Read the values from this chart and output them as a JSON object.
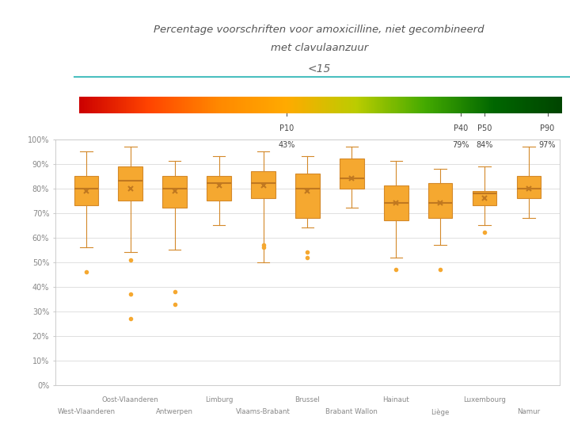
{
  "title_line1": "Percentage voorschriften voor amoxicilline, niet gecombineerd",
  "title_line2": "met clavulaanzuur",
  "subtitle": "<15",
  "categories": [
    "West-Vlaanderen",
    "Oost-Vlaanderen",
    "Antwerpen",
    "Limburg",
    "Vlaams-Brabant",
    "Brussel",
    "Brabant Wallon",
    "Hainaut",
    "Liège",
    "Luxembourg",
    "Namur"
  ],
  "box_data": [
    {
      "whislo": 0.56,
      "q1": 0.73,
      "med": 0.8,
      "q3": 0.85,
      "whishi": 0.95,
      "mean": 0.79,
      "fliers": [
        0.46
      ]
    },
    {
      "whislo": 0.54,
      "q1": 0.75,
      "med": 0.83,
      "q3": 0.89,
      "whishi": 0.97,
      "mean": 0.8,
      "fliers": [
        0.27,
        0.37,
        0.51
      ]
    },
    {
      "whislo": 0.55,
      "q1": 0.72,
      "med": 0.8,
      "q3": 0.85,
      "whishi": 0.91,
      "mean": 0.79,
      "fliers": [
        0.33,
        0.38
      ]
    },
    {
      "whislo": 0.65,
      "q1": 0.75,
      "med": 0.82,
      "q3": 0.85,
      "whishi": 0.93,
      "mean": 0.81,
      "fliers": []
    },
    {
      "whislo": 0.5,
      "q1": 0.76,
      "med": 0.82,
      "q3": 0.87,
      "whishi": 0.95,
      "mean": 0.81,
      "fliers": [
        0.56,
        0.57
      ]
    },
    {
      "whislo": 0.64,
      "q1": 0.68,
      "med": 0.8,
      "q3": 0.86,
      "whishi": 0.93,
      "mean": 0.79,
      "fliers": [
        0.52,
        0.54
      ]
    },
    {
      "whislo": 0.72,
      "q1": 0.8,
      "med": 0.84,
      "q3": 0.92,
      "whishi": 0.97,
      "mean": 0.84,
      "fliers": []
    },
    {
      "whislo": 0.52,
      "q1": 0.67,
      "med": 0.74,
      "q3": 0.81,
      "whishi": 0.91,
      "mean": 0.74,
      "fliers": [
        0.47
      ]
    },
    {
      "whislo": 0.57,
      "q1": 0.68,
      "med": 0.74,
      "q3": 0.82,
      "whishi": 0.88,
      "mean": 0.74,
      "fliers": [
        0.47
      ]
    },
    {
      "whislo": 0.65,
      "q1": 0.73,
      "med": 0.78,
      "q3": 0.79,
      "whishi": 0.89,
      "mean": 0.76,
      "fliers": [
        0.62
      ]
    },
    {
      "whislo": 0.68,
      "q1": 0.76,
      "med": 0.8,
      "q3": 0.85,
      "whishi": 0.97,
      "mean": 0.8,
      "fliers": []
    }
  ],
  "box_color": "#F5A830",
  "box_edge_color": "#D4892A",
  "whisker_color": "#D4892A",
  "median_color": "#C07820",
  "mean_color": "#C07820",
  "flier_color": "#F5A830",
  "background_color": "#FFFFFF",
  "plot_bg_color": "#FFFFFF",
  "grid_color": "#E0E0E0",
  "ylabel_ticks": [
    "0%",
    "10%",
    "20%",
    "30%",
    "40%",
    "50%",
    "60%",
    "70%",
    "80%",
    "90%",
    "100%"
  ],
  "ylabel_vals": [
    0.0,
    0.1,
    0.2,
    0.3,
    0.4,
    0.5,
    0.6,
    0.7,
    0.8,
    0.9,
    1.0
  ],
  "gradient_colors": [
    "#CC0000",
    "#FF4400",
    "#FF8800",
    "#FFAA00",
    "#BBCC00",
    "#44AA00",
    "#006600",
    "#004400"
  ],
  "percentile_labels": [
    "P10",
    "P40",
    "P50",
    "P90"
  ],
  "percentile_vals": [
    0.43,
    0.79,
    0.84,
    0.97
  ],
  "percentile_pcts": [
    "43%",
    "79%",
    "84%",
    "97%"
  ],
  "title_color": "#555555",
  "axis_label_color": "#888888",
  "fig_width": 7.2,
  "fig_height": 5.4,
  "dpi": 100
}
